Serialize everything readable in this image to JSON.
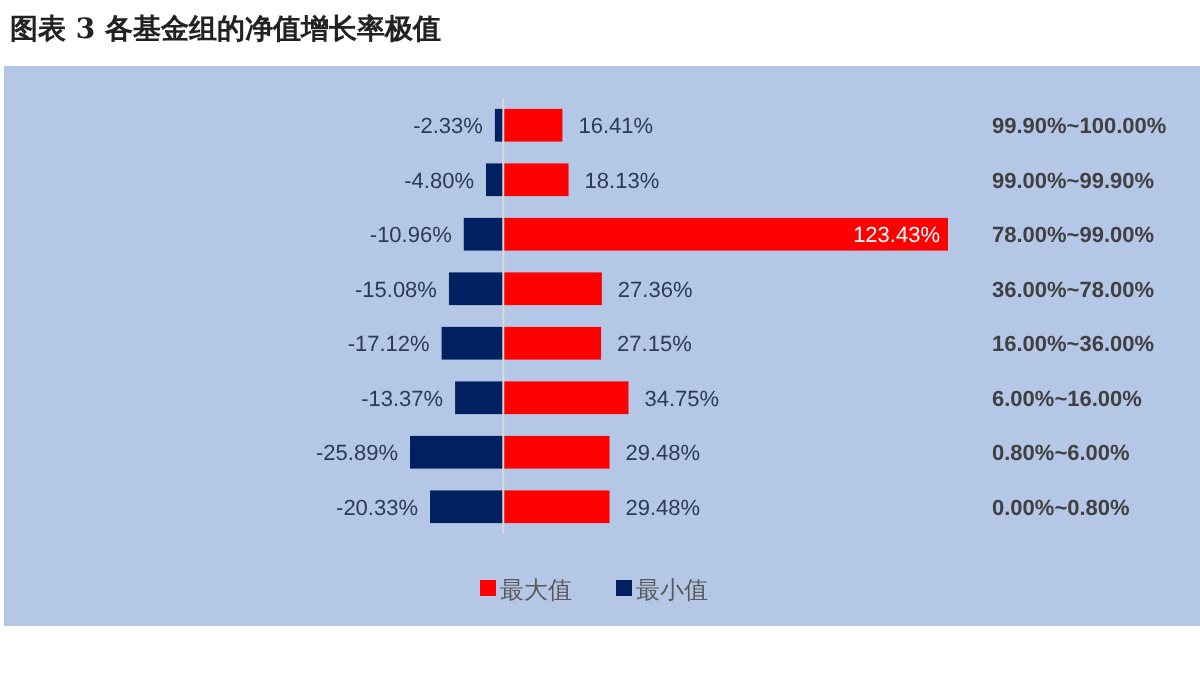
{
  "chart_data": {
    "type": "bar",
    "orientation": "horizontal",
    "stacked": true,
    "title": "图表 3  各基金组的净值增长率极值",
    "categories": [
      "99.90%~100.00%",
      "99.00%~99.90%",
      "78.00%~99.00%",
      "36.00%~78.00%",
      "16.00%~36.00%",
      "6.00%~16.00%",
      "0.80%~6.00%",
      "0.00%~0.80%"
    ],
    "series": [
      {
        "name": "最大值",
        "color": "#ff0000",
        "values": [
          16.41,
          18.13,
          123.43,
          27.36,
          27.15,
          34.75,
          29.48,
          29.48
        ],
        "value_labels": [
          "16.41%",
          "18.13%",
          "123.43%",
          "27.36%",
          "27.15%",
          "34.75%",
          "29.48%",
          "29.48%"
        ]
      },
      {
        "name": "最小值",
        "color": "#002060",
        "values": [
          -2.33,
          -4.8,
          -10.96,
          -15.08,
          -17.12,
          -13.37,
          -25.89,
          -20.33
        ],
        "value_labels": [
          "-2.33%",
          "-4.80%",
          "-10.96%",
          "-15.08%",
          "-17.12%",
          "-13.37%",
          "-25.89%",
          "-20.33%"
        ]
      }
    ],
    "legend": "bottom"
  }
}
